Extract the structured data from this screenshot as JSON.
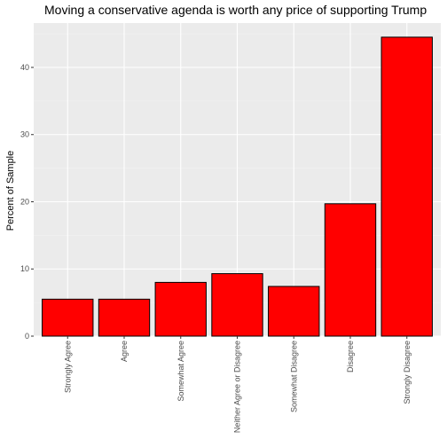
{
  "chart_data": {
    "type": "bar",
    "title": "Moving a conservative agenda is worth any price of supporting Trump",
    "xlabel": "",
    "ylabel": "Percent of Sample",
    "categories": [
      "Strongly Agree",
      "Agree",
      "Somewhat Agree",
      "Neither Agree or Disagree",
      "Somewhat Disagree",
      "Disagree",
      "Strongly Disagree"
    ],
    "values": [
      5.5,
      5.5,
      8.0,
      9.3,
      7.4,
      19.7,
      44.5
    ],
    "ylim": [
      0,
      46.6
    ],
    "yticks": [
      0,
      10,
      20,
      30,
      40
    ],
    "grid": true,
    "legend": "none",
    "colors": {
      "bar_fill": "#ff0000",
      "bar_stroke": "#000000",
      "panel_background": "#ebebeb",
      "grid_major": "#ffffff",
      "grid_minor": "#f5f5f5"
    }
  }
}
